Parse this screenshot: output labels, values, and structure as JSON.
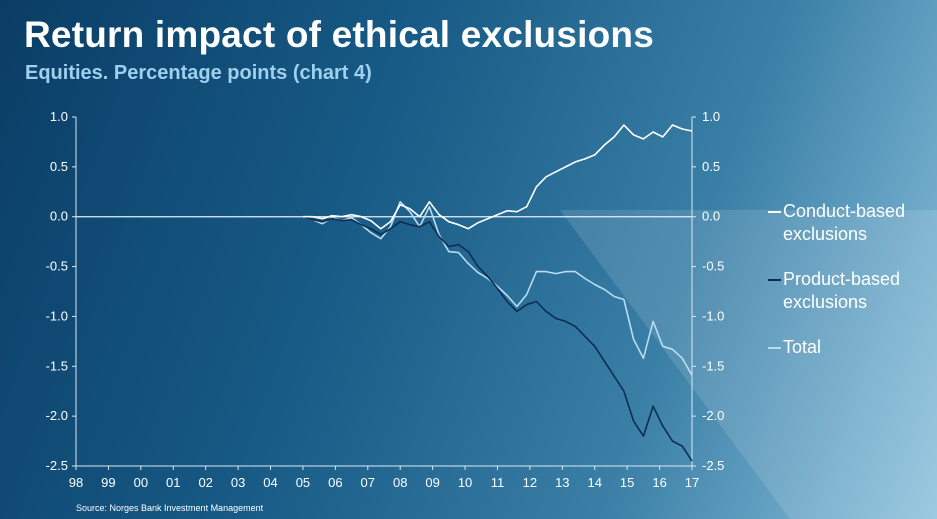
{
  "title": "Return impact of ethical exclusions",
  "subtitle": "Equities. Percentage points (chart 4)",
  "source": "Source: Norges Bank Investment Management",
  "colors": {
    "conduct": "#ffffff",
    "product": "#0d2d52",
    "total": "#b9dcf2",
    "zero_line": "#e6eef5"
  },
  "chart_data": {
    "type": "line",
    "title": "Return impact of ethical exclusions",
    "xlabel": "",
    "ylabel": "Percentage points",
    "ylim": [
      -2.5,
      1.0
    ],
    "xlim": [
      1998,
      2017
    ],
    "y_ticks": [
      "1.0",
      "0.5",
      "0.0",
      "-0.5",
      "-1.0",
      "-1.5",
      "-2.0",
      "-2.5"
    ],
    "x_ticks": [
      "98",
      "99",
      "00",
      "01",
      "02",
      "03",
      "04",
      "05",
      "06",
      "07",
      "08",
      "09",
      "10",
      "11",
      "12",
      "13",
      "14",
      "15",
      "16",
      "17"
    ],
    "series": [
      {
        "name": "Conduct-based exclusions",
        "color_key": "conduct",
        "x": [
          2005.0,
          2005.3,
          2005.6,
          2005.9,
          2006.2,
          2006.5,
          2006.8,
          2007.1,
          2007.4,
          2007.7,
          2008.0,
          2008.3,
          2008.6,
          2008.9,
          2009.2,
          2009.5,
          2009.8,
          2010.1,
          2010.4,
          2010.7,
          2011.0,
          2011.3,
          2011.6,
          2011.9,
          2012.2,
          2012.5,
          2012.8,
          2013.1,
          2013.4,
          2013.7,
          2014.0,
          2014.3,
          2014.6,
          2014.9,
          2015.2,
          2015.5,
          2015.8,
          2016.1,
          2016.4,
          2016.7,
          2017.0
        ],
        "values": [
          0.0,
          0.0,
          -0.02,
          0.01,
          0.0,
          0.02,
          0.0,
          -0.04,
          -0.12,
          -0.05,
          0.12,
          0.08,
          0.0,
          0.15,
          0.02,
          -0.05,
          -0.08,
          -0.12,
          -0.06,
          -0.02,
          0.02,
          0.06,
          0.05,
          0.1,
          0.3,
          0.4,
          0.45,
          0.5,
          0.55,
          0.58,
          0.62,
          0.72,
          0.8,
          0.92,
          0.82,
          0.78,
          0.85,
          0.8,
          0.92,
          0.88,
          0.86
        ]
      },
      {
        "name": "Product-based exclusions",
        "color_key": "product",
        "x": [
          2005.0,
          2005.3,
          2005.6,
          2005.9,
          2006.2,
          2006.5,
          2006.8,
          2007.1,
          2007.4,
          2007.7,
          2008.0,
          2008.3,
          2008.6,
          2008.9,
          2009.2,
          2009.5,
          2009.8,
          2010.1,
          2010.4,
          2010.7,
          2011.0,
          2011.3,
          2011.6,
          2011.9,
          2012.2,
          2012.5,
          2012.8,
          2013.1,
          2013.4,
          2013.7,
          2014.0,
          2014.3,
          2014.6,
          2014.9,
          2015.2,
          2015.5,
          2015.8,
          2016.1,
          2016.4,
          2016.7,
          2017.0
        ],
        "values": [
          0.0,
          -0.03,
          -0.05,
          -0.02,
          -0.04,
          -0.03,
          -0.08,
          -0.12,
          -0.18,
          -0.12,
          -0.05,
          -0.08,
          -0.1,
          -0.05,
          -0.2,
          -0.3,
          -0.28,
          -0.35,
          -0.5,
          -0.6,
          -0.72,
          -0.85,
          -0.95,
          -0.88,
          -0.85,
          -0.95,
          -1.02,
          -1.05,
          -1.1,
          -1.2,
          -1.3,
          -1.45,
          -1.6,
          -1.75,
          -2.05,
          -2.2,
          -1.9,
          -2.1,
          -2.25,
          -2.3,
          -2.45
        ]
      },
      {
        "name": "Total",
        "color_key": "total",
        "x": [
          2005.0,
          2005.3,
          2005.6,
          2005.9,
          2006.2,
          2006.5,
          2006.8,
          2007.1,
          2007.4,
          2007.7,
          2008.0,
          2008.3,
          2008.6,
          2008.9,
          2009.2,
          2009.5,
          2009.8,
          2010.1,
          2010.4,
          2010.7,
          2011.0,
          2011.3,
          2011.6,
          2011.9,
          2012.2,
          2012.5,
          2012.8,
          2013.1,
          2013.4,
          2013.7,
          2014.0,
          2014.3,
          2014.6,
          2014.9,
          2015.2,
          2015.5,
          2015.8,
          2016.1,
          2016.4,
          2016.7,
          2017.0
        ],
        "values": [
          0.0,
          -0.03,
          -0.07,
          -0.01,
          -0.04,
          -0.01,
          -0.08,
          -0.16,
          -0.22,
          -0.1,
          0.15,
          0.05,
          -0.1,
          0.1,
          -0.18,
          -0.35,
          -0.36,
          -0.47,
          -0.56,
          -0.62,
          -0.7,
          -0.79,
          -0.9,
          -0.78,
          -0.55,
          -0.55,
          -0.57,
          -0.55,
          -0.55,
          -0.62,
          -0.68,
          -0.73,
          -0.8,
          -0.83,
          -1.23,
          -1.42,
          -1.05,
          -1.3,
          -1.33,
          -1.42,
          -1.59
        ]
      }
    ]
  }
}
